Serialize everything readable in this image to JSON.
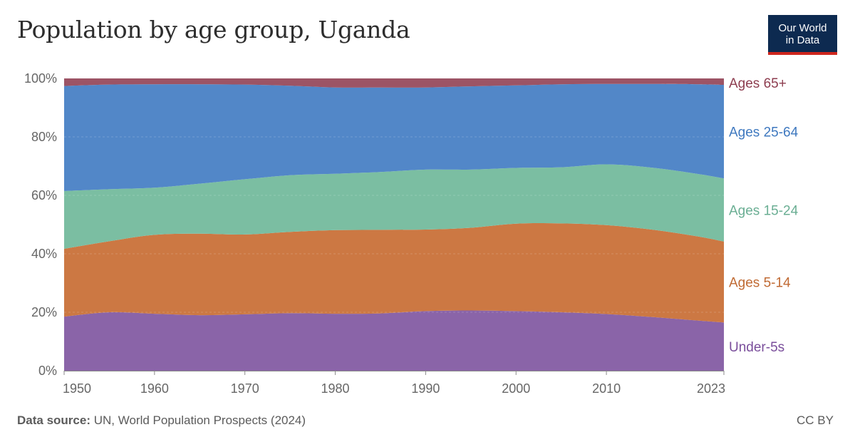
{
  "header": {
    "title": "Population by age group, Uganda",
    "logo_line1": "Our World",
    "logo_line2": "in Data"
  },
  "footer": {
    "source_label": "Data source:",
    "source_text": "UN, World Population Prospects (2024)",
    "license": "CC BY"
  },
  "chart_data": {
    "type": "area",
    "stacked": true,
    "normalized": true,
    "title": "Population by age group, Uganda",
    "x": [
      1950,
      1955,
      1960,
      1965,
      1970,
      1975,
      1980,
      1985,
      1990,
      1995,
      2000,
      2005,
      2010,
      2015,
      2020,
      2023
    ],
    "x_tick_labels": [
      "1950",
      "1960",
      "1970",
      "1980",
      "1990",
      "2000",
      "2010",
      "2023"
    ],
    "y_tick_labels": [
      "0%",
      "20%",
      "40%",
      "60%",
      "80%",
      "100%"
    ],
    "ylim": [
      0,
      100
    ],
    "yunit": "%",
    "series": [
      {
        "name": "Under-5s",
        "color": "#8a64a8",
        "values": [
          18.5,
          20.0,
          19.5,
          19.0,
          19.3,
          19.7,
          19.5,
          19.6,
          20.4,
          20.6,
          20.4,
          20.0,
          19.4,
          18.4,
          17.2,
          16.5
        ]
      },
      {
        "name": "Ages 5-14",
        "color": "#cc7843",
        "values": [
          23.2,
          24.3,
          27.0,
          27.9,
          27.3,
          27.8,
          28.6,
          28.6,
          27.9,
          28.3,
          29.9,
          30.4,
          30.4,
          29.9,
          28.8,
          27.7
        ]
      },
      {
        "name": "Ages 15-24",
        "color": "#7bbea2",
        "values": [
          19.8,
          17.8,
          16.1,
          17.1,
          18.9,
          19.4,
          19.3,
          19.8,
          20.5,
          19.9,
          19.1,
          19.2,
          20.8,
          21.2,
          21.4,
          21.6
        ]
      },
      {
        "name": "Ages 25-64",
        "color": "#5287c8",
        "values": [
          35.9,
          35.8,
          35.4,
          34.0,
          32.4,
          30.6,
          29.5,
          28.9,
          28.1,
          28.5,
          28.2,
          28.4,
          27.5,
          28.6,
          30.6,
          32.0
        ]
      },
      {
        "name": "Ages 65+",
        "color": "#9c5465",
        "values": [
          2.6,
          2.1,
          2.0,
          2.0,
          2.1,
          2.5,
          3.1,
          3.1,
          3.1,
          2.7,
          2.4,
          2.0,
          1.9,
          1.9,
          2.0,
          2.2
        ]
      }
    ],
    "series_label_colors": [
      "#7a4e9b",
      "#c06a33",
      "#6aae93",
      "#3e78bf",
      "#8d3d4f"
    ],
    "legend": "right-inline"
  }
}
